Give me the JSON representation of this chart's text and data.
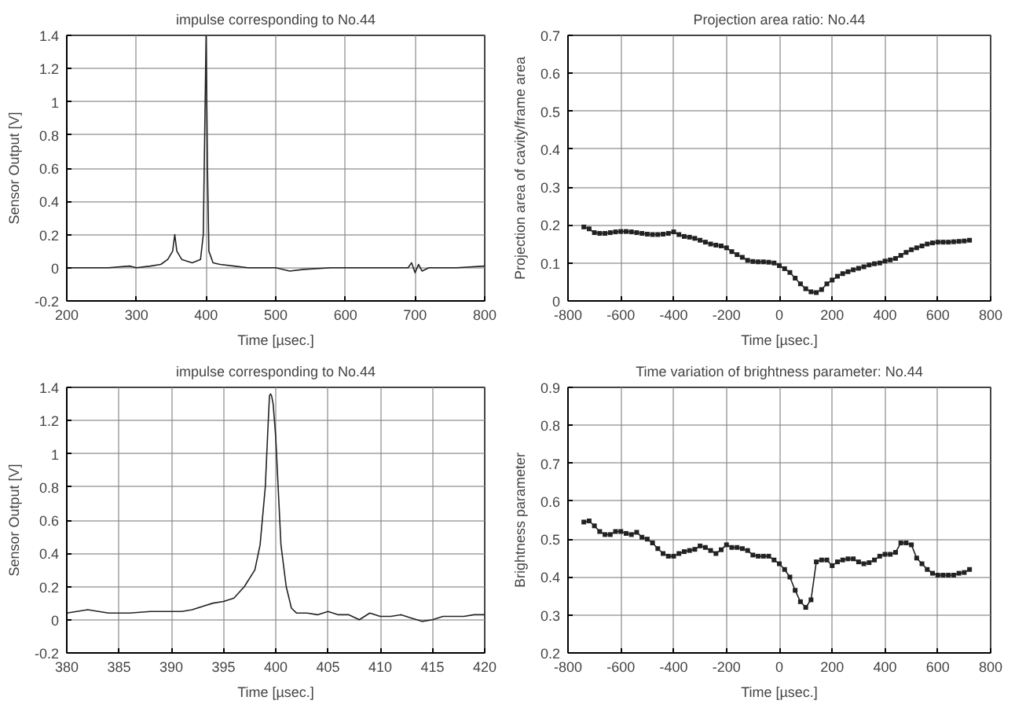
{
  "chart_data": [
    {
      "type": "line",
      "title": "impulse corresponding to No.44",
      "xlabel": "Time [µsec.]",
      "ylabel": "Sensor Output [V]",
      "xlim": [
        200,
        800
      ],
      "ylim": [
        -0.2,
        1.4
      ],
      "xticks": [
        200,
        300,
        400,
        500,
        600,
        700,
        800
      ],
      "yticks": [
        -0.2,
        0,
        0.2,
        0.4,
        0.6,
        0.8,
        1,
        1.2,
        1.4
      ],
      "grid": true,
      "marker": "none",
      "line_style": "solid",
      "series": [
        {
          "color": "#222222",
          "x": [
            200,
            230,
            260,
            290,
            300,
            320,
            335,
            345,
            352,
            355,
            358,
            365,
            380,
            392,
            396,
            398,
            400,
            402,
            404,
            410,
            420,
            440,
            460,
            500,
            520,
            540,
            580,
            650,
            690,
            695,
            700,
            705,
            710,
            720,
            760,
            800
          ],
          "values": [
            0,
            0,
            0,
            0.01,
            0,
            0.01,
            0.02,
            0.05,
            0.1,
            0.2,
            0.1,
            0.05,
            0.03,
            0.05,
            0.2,
            0.8,
            1.4,
            0.6,
            0.1,
            0.03,
            0.02,
            0.01,
            0,
            0,
            -0.02,
            -0.01,
            0,
            0,
            0,
            0.03,
            -0.03,
            0.02,
            -0.02,
            0,
            0,
            0.01
          ]
        }
      ]
    },
    {
      "type": "line",
      "title": "Projection area ratio: No.44",
      "xlabel": "Time [µsec.]",
      "ylabel": "Projection area of cavity/frame area",
      "xlim": [
        -800,
        800
      ],
      "ylim": [
        0,
        0.7
      ],
      "xticks": [
        -800,
        -600,
        -400,
        -200,
        0,
        200,
        400,
        600,
        800
      ],
      "yticks": [
        0,
        0.1,
        0.2,
        0.3,
        0.4,
        0.5,
        0.6,
        0.7
      ],
      "grid": true,
      "marker": "square",
      "line_style": "solid",
      "series": [
        {
          "color": "#222222",
          "x": [
            -740,
            -720,
            -700,
            -680,
            -660,
            -640,
            -620,
            -600,
            -580,
            -560,
            -540,
            -520,
            -500,
            -480,
            -460,
            -440,
            -420,
            -400,
            -380,
            -360,
            -340,
            -320,
            -300,
            -280,
            -260,
            -240,
            -220,
            -200,
            -180,
            -160,
            -140,
            -120,
            -100,
            -80,
            -60,
            -40,
            -20,
            0,
            20,
            40,
            60,
            80,
            100,
            120,
            140,
            160,
            180,
            200,
            220,
            240,
            260,
            280,
            300,
            320,
            340,
            360,
            380,
            400,
            420,
            440,
            460,
            480,
            500,
            520,
            540,
            560,
            580,
            600,
            620,
            640,
            660,
            680,
            700,
            720
          ],
          "values": [
            0.195,
            0.19,
            0.18,
            0.178,
            0.178,
            0.18,
            0.182,
            0.183,
            0.183,
            0.182,
            0.18,
            0.178,
            0.176,
            0.175,
            0.175,
            0.176,
            0.178,
            0.182,
            0.175,
            0.17,
            0.168,
            0.165,
            0.16,
            0.155,
            0.15,
            0.147,
            0.145,
            0.14,
            0.13,
            0.122,
            0.115,
            0.107,
            0.104,
            0.103,
            0.103,
            0.102,
            0.1,
            0.093,
            0.085,
            0.075,
            0.06,
            0.045,
            0.032,
            0.024,
            0.022,
            0.03,
            0.045,
            0.055,
            0.065,
            0.072,
            0.077,
            0.082,
            0.086,
            0.09,
            0.095,
            0.098,
            0.1,
            0.105,
            0.108,
            0.112,
            0.12,
            0.128,
            0.135,
            0.14,
            0.145,
            0.15,
            0.153,
            0.155,
            0.155,
            0.155,
            0.156,
            0.157,
            0.158,
            0.16
          ]
        }
      ]
    },
    {
      "type": "line",
      "title": "impulse corresponding to No.44",
      "xlabel": "Time [µsec.]",
      "ylabel": "Sensor Output [V]",
      "xlim": [
        380,
        420
      ],
      "ylim": [
        -0.2,
        1.4
      ],
      "xticks": [
        380,
        385,
        390,
        395,
        400,
        405,
        410,
        415,
        420
      ],
      "yticks": [
        -0.2,
        0,
        0.2,
        0.4,
        0.6,
        0.8,
        1,
        1.2,
        1.4
      ],
      "grid": true,
      "marker": "none",
      "line_style": "solid",
      "series": [
        {
          "color": "#222222",
          "x": [
            380,
            382,
            384,
            386,
            388,
            391,
            392,
            393,
            394,
            395,
            396,
            397,
            398,
            398.5,
            399,
            399.25,
            399.4,
            399.5,
            399.6,
            399.75,
            400,
            400.5,
            401,
            401.5,
            402,
            403,
            404,
            405,
            406,
            407,
            408,
            409,
            410,
            411,
            412,
            413,
            414,
            415,
            416,
            417,
            418,
            419,
            420
          ],
          "values": [
            0.04,
            0.06,
            0.04,
            0.04,
            0.05,
            0.05,
            0.06,
            0.08,
            0.1,
            0.11,
            0.13,
            0.2,
            0.3,
            0.45,
            0.8,
            1.15,
            1.35,
            1.36,
            1.35,
            1.3,
            1.1,
            0.45,
            0.2,
            0.07,
            0.04,
            0.04,
            0.03,
            0.05,
            0.03,
            0.03,
            0,
            0.04,
            0.02,
            0.02,
            0.03,
            0.01,
            -0.01,
            0,
            0.02,
            0.02,
            0.02,
            0.03,
            0.03
          ]
        }
      ]
    },
    {
      "type": "line",
      "title": "Time variation of brightness parameter: No.44",
      "xlabel": "Time [µsec.]",
      "ylabel": "Brightness parameter",
      "xlim": [
        -800,
        800
      ],
      "ylim": [
        0.2,
        0.9
      ],
      "xticks": [
        -800,
        -600,
        -400,
        -200,
        0,
        200,
        400,
        600,
        800
      ],
      "yticks": [
        0.2,
        0.3,
        0.4,
        0.5,
        0.6,
        0.7,
        0.8,
        0.9
      ],
      "grid": true,
      "marker": "square",
      "line_style": "solid",
      "series": [
        {
          "color": "#222222",
          "x": [
            -740,
            -720,
            -700,
            -680,
            -660,
            -640,
            -620,
            -600,
            -580,
            -560,
            -540,
            -520,
            -500,
            -480,
            -460,
            -440,
            -420,
            -400,
            -380,
            -360,
            -340,
            -320,
            -300,
            -280,
            -260,
            -240,
            -220,
            -200,
            -180,
            -160,
            -140,
            -120,
            -100,
            -80,
            -60,
            -40,
            -20,
            0,
            20,
            40,
            60,
            80,
            100,
            120,
            140,
            160,
            180,
            200,
            220,
            240,
            260,
            280,
            300,
            320,
            340,
            360,
            380,
            400,
            420,
            440,
            460,
            480,
            500,
            520,
            540,
            560,
            580,
            600,
            620,
            640,
            660,
            680,
            700,
            720
          ],
          "values": [
            0.545,
            0.548,
            0.535,
            0.52,
            0.512,
            0.512,
            0.52,
            0.52,
            0.515,
            0.512,
            0.518,
            0.505,
            0.5,
            0.49,
            0.475,
            0.462,
            0.455,
            0.455,
            0.462,
            0.467,
            0.47,
            0.473,
            0.482,
            0.478,
            0.47,
            0.462,
            0.472,
            0.485,
            0.478,
            0.478,
            0.475,
            0.47,
            0.458,
            0.455,
            0.455,
            0.455,
            0.445,
            0.435,
            0.42,
            0.4,
            0.365,
            0.335,
            0.32,
            0.34,
            0.44,
            0.445,
            0.445,
            0.43,
            0.44,
            0.445,
            0.448,
            0.448,
            0.44,
            0.435,
            0.438,
            0.445,
            0.455,
            0.46,
            0.46,
            0.465,
            0.49,
            0.49,
            0.485,
            0.45,
            0.435,
            0.42,
            0.41,
            0.405,
            0.405,
            0.405,
            0.405,
            0.41,
            0.412,
            0.42
          ]
        }
      ]
    }
  ]
}
